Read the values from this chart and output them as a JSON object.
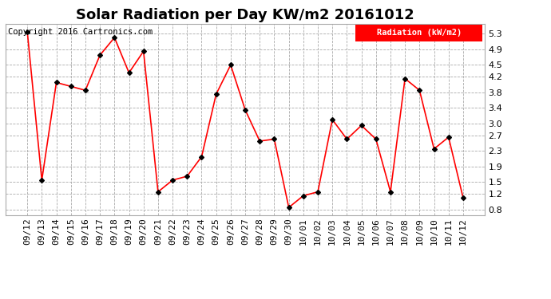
{
  "title": "Solar Radiation per Day KW/m2 20161012",
  "ylabel": "Radiation (kW/m2)",
  "copyright_text": "Copyright 2016 Cartronics.com",
  "ylim": [
    0.65,
    5.55
  ],
  "yticks": [
    0.8,
    1.2,
    1.5,
    1.9,
    2.3,
    2.7,
    3.0,
    3.4,
    3.8,
    4.2,
    4.5,
    4.9,
    5.3
  ],
  "dates": [
    "09/12",
    "09/13",
    "09/14",
    "09/15",
    "09/16",
    "09/17",
    "09/18",
    "09/19",
    "09/20",
    "09/21",
    "09/22",
    "09/23",
    "09/24",
    "09/25",
    "09/26",
    "09/27",
    "09/28",
    "09/29",
    "09/30",
    "10/01",
    "10/02",
    "10/03",
    "10/04",
    "10/05",
    "10/06",
    "10/07",
    "10/08",
    "10/09",
    "10/10",
    "10/11",
    "10/12"
  ],
  "values": [
    5.35,
    1.55,
    4.05,
    3.95,
    3.85,
    4.75,
    5.2,
    4.3,
    4.85,
    1.25,
    1.55,
    1.65,
    2.15,
    3.75,
    4.5,
    3.35,
    2.55,
    2.6,
    0.85,
    1.15,
    1.25,
    3.1,
    2.6,
    2.95,
    2.6,
    1.25,
    4.15,
    3.85,
    2.35,
    2.65,
    1.1
  ],
  "line_color": "red",
  "marker_color": "black",
  "marker_size": 3,
  "background_color": "#ffffff",
  "grid_color": "#aaaaaa",
  "legend_bg": "red",
  "legend_text_color": "white",
  "title_fontsize": 13,
  "tick_fontsize": 8,
  "copyright_fontsize": 7.5
}
